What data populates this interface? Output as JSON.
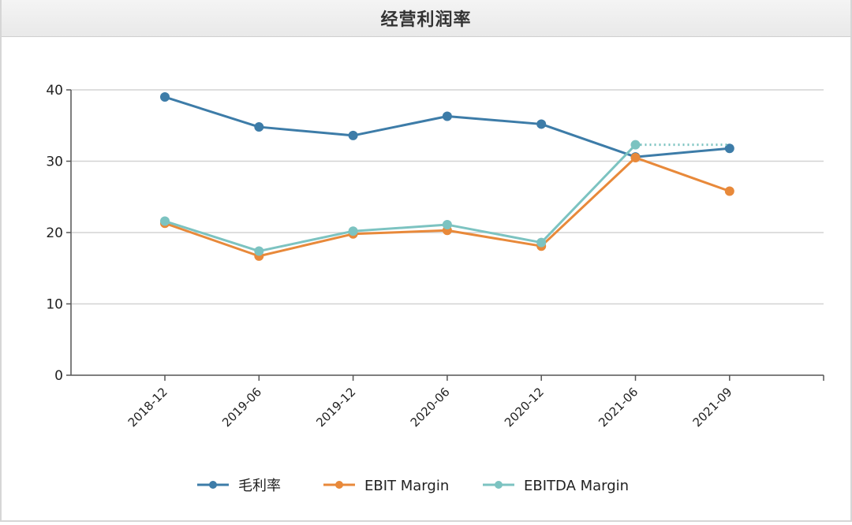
{
  "title": "经营利润率",
  "chart_data": {
    "type": "line",
    "categories": [
      "2018-12",
      "2019-06",
      "2019-12",
      "2020-06",
      "2020-12",
      "2021-06",
      "2021-09"
    ],
    "ylim": [
      0,
      40
    ],
    "yticks": [
      0,
      10,
      20,
      30,
      40
    ],
    "grid": true,
    "legend_position": "bottom",
    "series": [
      {
        "name": "毛利率",
        "color": "#3d7ca8",
        "values": [
          39.0,
          34.8,
          33.6,
          36.3,
          35.2,
          30.6,
          31.8
        ]
      },
      {
        "name": "EBIT Margin",
        "color": "#e8893a",
        "values": [
          21.3,
          16.7,
          19.8,
          20.3,
          18.1,
          30.5,
          25.8
        ]
      },
      {
        "name": "EBITDA Margin",
        "color": "#7cc3c1",
        "values": [
          21.6,
          17.4,
          20.2,
          21.1,
          18.6,
          32.3,
          32.3
        ],
        "dotted_last_segment": true
      }
    ]
  }
}
